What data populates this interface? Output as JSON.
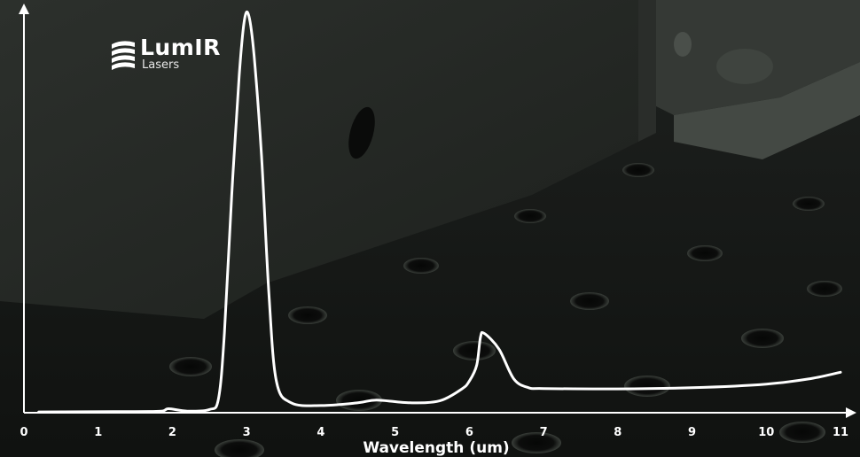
{
  "brand": {
    "name": "LumIR",
    "tagline": "Lasers"
  },
  "chart_data": {
    "type": "line",
    "title": "",
    "xlabel": "Wavelength (um)",
    "ylabel": "",
    "xlim": [
      0,
      11
    ],
    "x_ticks": [
      0,
      1,
      2,
      3,
      4,
      5,
      6,
      7,
      8,
      9,
      10,
      11
    ],
    "y_ticks_shown": false,
    "grid": false,
    "legend": "none",
    "line_color": "#ffffff",
    "series": [
      {
        "x": [
          0.2,
          1.5,
          1.85,
          1.95,
          2.2,
          2.5,
          2.62,
          2.7,
          2.8,
          2.9,
          2.97,
          3.03,
          3.1,
          3.2,
          3.3,
          3.4,
          3.6,
          4.0,
          4.5,
          4.75,
          5.2,
          5.6,
          5.9,
          6.0,
          6.1,
          6.15,
          6.2,
          6.4,
          6.6,
          6.8,
          7.0,
          8.0,
          9.0,
          10.0,
          10.6,
          11.0
        ],
        "y": [
          0.2,
          0.3,
          0.4,
          1.0,
          0.4,
          0.8,
          3.5,
          20,
          55,
          85,
          99,
          100,
          90,
          65,
          30,
          8,
          2.5,
          1.8,
          2.5,
          3.2,
          2.5,
          3.0,
          6.0,
          8.0,
          12,
          19,
          20,
          16,
          8.5,
          6.3,
          6.1,
          6.0,
          6.3,
          7.2,
          8.6,
          10.2
        ]
      }
    ]
  }
}
